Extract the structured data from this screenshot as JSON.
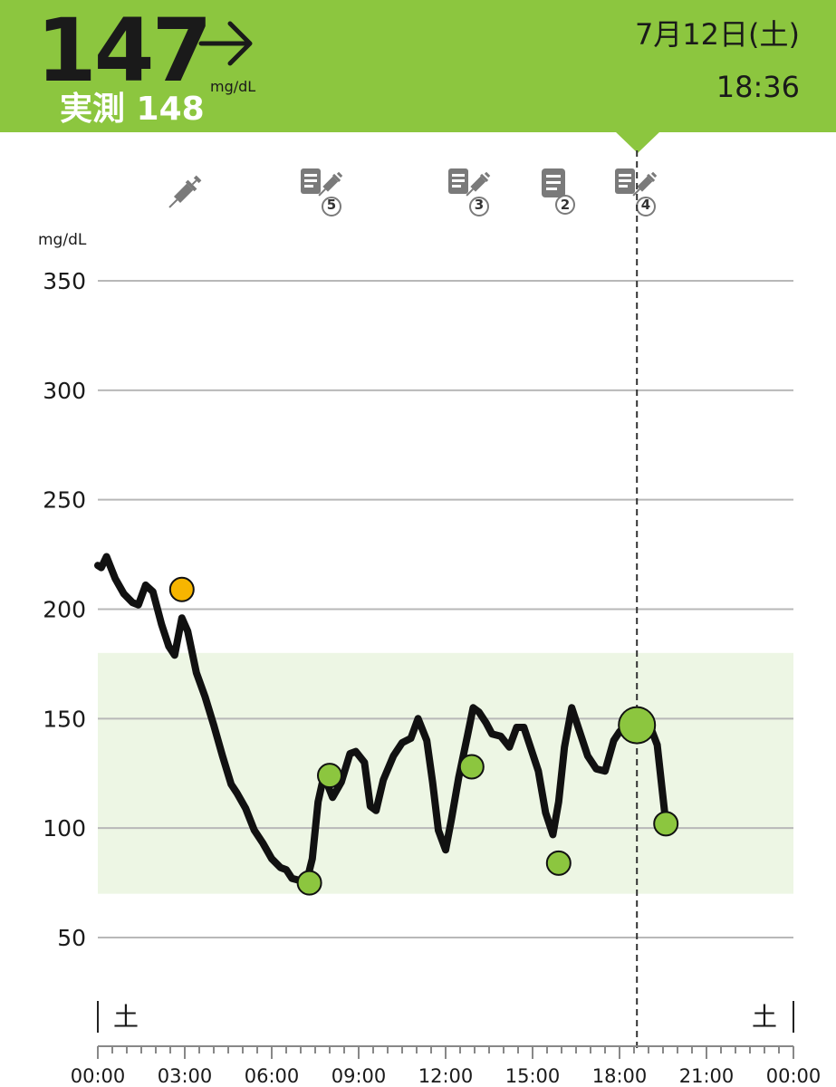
{
  "header": {
    "glucose_value": "147",
    "trend": "right-arrow-icon",
    "unit": "mg/dL",
    "measured_label": "実測 148",
    "date": "7月12日(土)",
    "time": "18:36",
    "accent_color": "#8cc63f"
  },
  "events": [
    {
      "icon": "syringe-icon",
      "badge": ""
    },
    {
      "icon": "note-syringe-icon",
      "badge": "5"
    },
    {
      "icon": "note-syringe-icon",
      "badge": "3"
    },
    {
      "icon": "note-icon",
      "badge": "2"
    },
    {
      "icon": "note-syringe-icon",
      "badge": "4"
    }
  ],
  "chart_data": {
    "type": "line",
    "ylabel": "mg/dL",
    "ylim": [
      30,
      370
    ],
    "yticks": [
      350,
      300,
      250,
      200,
      150,
      100,
      50
    ],
    "xticks": [
      "00:00",
      "03:00",
      "06:00",
      "09:00",
      "12:00",
      "15:00",
      "18:00",
      "21:00",
      "00:00"
    ],
    "day_labels": {
      "start": "土",
      "end": "土"
    },
    "target_range": [
      70,
      180
    ],
    "grid": true,
    "cursor_time_h": 18.6,
    "line_color": "#111111",
    "target_color": "#edf6e4",
    "point_color": "#8cc63f",
    "high_point_color": "#f7b500",
    "series": [
      {
        "x": [
          0,
          0.12,
          0.3,
          0.6,
          0.9,
          1.2,
          1.4,
          1.65,
          1.9,
          2.2,
          2.45,
          2.65,
          2.9,
          3.1,
          3.4,
          3.7,
          4.0,
          4.3,
          4.6,
          4.8,
          5.1,
          5.4,
          5.7,
          6.0,
          6.3,
          6.5,
          6.7,
          7.0,
          7.25,
          7.4,
          7.6,
          7.8,
          8.1,
          8.4,
          8.7,
          8.9,
          9.2,
          9.4,
          9.6,
          9.85,
          10.2,
          10.5,
          10.8,
          11.05,
          11.35,
          11.55,
          11.75,
          12.0,
          12.2,
          12.45,
          12.75,
          12.95,
          13.15,
          13.4,
          13.6,
          13.9,
          14.2,
          14.45,
          14.7,
          14.9,
          15.2,
          15.45,
          15.7,
          15.9,
          16.1,
          16.35,
          16.6,
          16.9,
          17.2,
          17.5,
          17.8,
          18.0,
          18.3,
          18.6,
          18.9,
          19.1,
          19.3,
          19.6
        ],
        "y": [
          220,
          219,
          224,
          214,
          207,
          203,
          202,
          211,
          208,
          193,
          183,
          179,
          196,
          190,
          171,
          160,
          147,
          133,
          120,
          116,
          109,
          99,
          93,
          86,
          82,
          81,
          77,
          76,
          78,
          86,
          112,
          124,
          114,
          121,
          134,
          135,
          130,
          110,
          108,
          122,
          133,
          139,
          141,
          150,
          140,
          121,
          99,
          90,
          104,
          123,
          142,
          155,
          153,
          148,
          143,
          142,
          137,
          146,
          146,
          138,
          126,
          107,
          97,
          112,
          137,
          155,
          145,
          133,
          127,
          126,
          140,
          144,
          148,
          147,
          149,
          145,
          138,
          102
        ]
      }
    ],
    "points": [
      {
        "x": 2.9,
        "y": 209,
        "kind": "high"
      },
      {
        "x": 7.3,
        "y": 75,
        "kind": "normal"
      },
      {
        "x": 8.0,
        "y": 124,
        "kind": "normal"
      },
      {
        "x": 12.9,
        "y": 128,
        "kind": "normal"
      },
      {
        "x": 15.9,
        "y": 84,
        "kind": "normal"
      },
      {
        "x": 18.6,
        "y": 147,
        "kind": "current"
      },
      {
        "x": 19.6,
        "y": 102,
        "kind": "normal"
      }
    ]
  }
}
